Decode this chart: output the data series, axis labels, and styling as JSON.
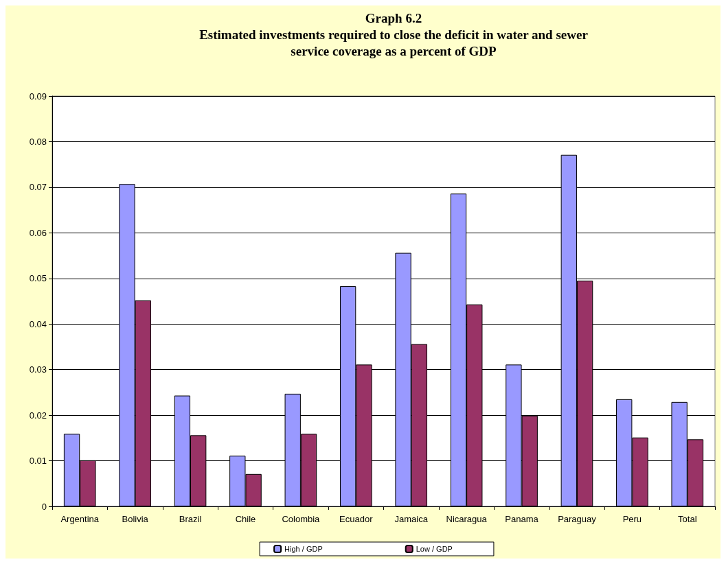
{
  "chart_data": {
    "type": "bar",
    "title": "Graph 6.2",
    "subtitle": "Estimated investments required to close the deficit in water and sewer\nservice coverage as a percent of GDP",
    "categories": [
      "Argentina",
      "Bolivia",
      "Brazil",
      "Chile",
      "Colombia",
      "Ecuador",
      "Jamaica",
      "Nicaragua",
      "Panama",
      "Paraguay",
      "Peru",
      "Total"
    ],
    "series": [
      {
        "name": "High / GDP",
        "color": "#9999ff",
        "values": [
          0.0159,
          0.0707,
          0.0243,
          0.0111,
          0.0247,
          0.0483,
          0.0556,
          0.0686,
          0.0311,
          0.0771,
          0.0235,
          0.0229
        ]
      },
      {
        "name": "Low / GDP",
        "color": "#993366",
        "values": [
          0.0101,
          0.0452,
          0.0156,
          0.0071,
          0.0159,
          0.0311,
          0.0356,
          0.0443,
          0.0199,
          0.0495,
          0.0151,
          0.0147
        ]
      }
    ],
    "ylim": [
      0,
      0.09
    ],
    "yticks": [
      0,
      0.01,
      0.02,
      0.03,
      0.04,
      0.05,
      0.06,
      0.07,
      0.08,
      0.09
    ],
    "grid": "y",
    "legend": "bottom"
  }
}
